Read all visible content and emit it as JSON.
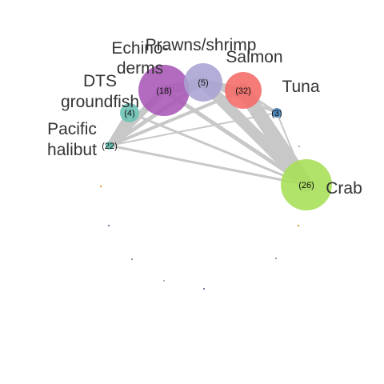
{
  "nodes": {
    "echinoderms": {
      "label_lines": [
        "Echino-",
        "derms"
      ],
      "count": "(18)",
      "color": "#a757b5"
    },
    "prawns": {
      "label_lines": [
        "Prawns/shrimp"
      ],
      "count": "(5)",
      "color": "#a9a3d3"
    },
    "salmon": {
      "label_lines": [
        "Salmon"
      ],
      "count": "(32)",
      "color": "#f46a66"
    },
    "tuna": {
      "label_lines": [
        "Tuna"
      ],
      "count": "(3)",
      "color": "#3f7fb8"
    },
    "dts": {
      "label_lines": [
        "DTS",
        "groundfish"
      ],
      "count": "(4)",
      "color": "#6ac1b3"
    },
    "halibut": {
      "label_lines": [
        "Pacific",
        "halibut"
      ],
      "count": "(22)",
      "color": "#5ebdb0"
    },
    "crab": {
      "label_lines": [
        "Crab"
      ],
      "count": "(26)",
      "color": "#a6df55"
    }
  },
  "edge_color": "#c8c8c8",
  "minor_node_colors": [
    "#e08a1e",
    "#6f6f9a",
    "#8a8a8a",
    "#b3a0c0"
  ]
}
